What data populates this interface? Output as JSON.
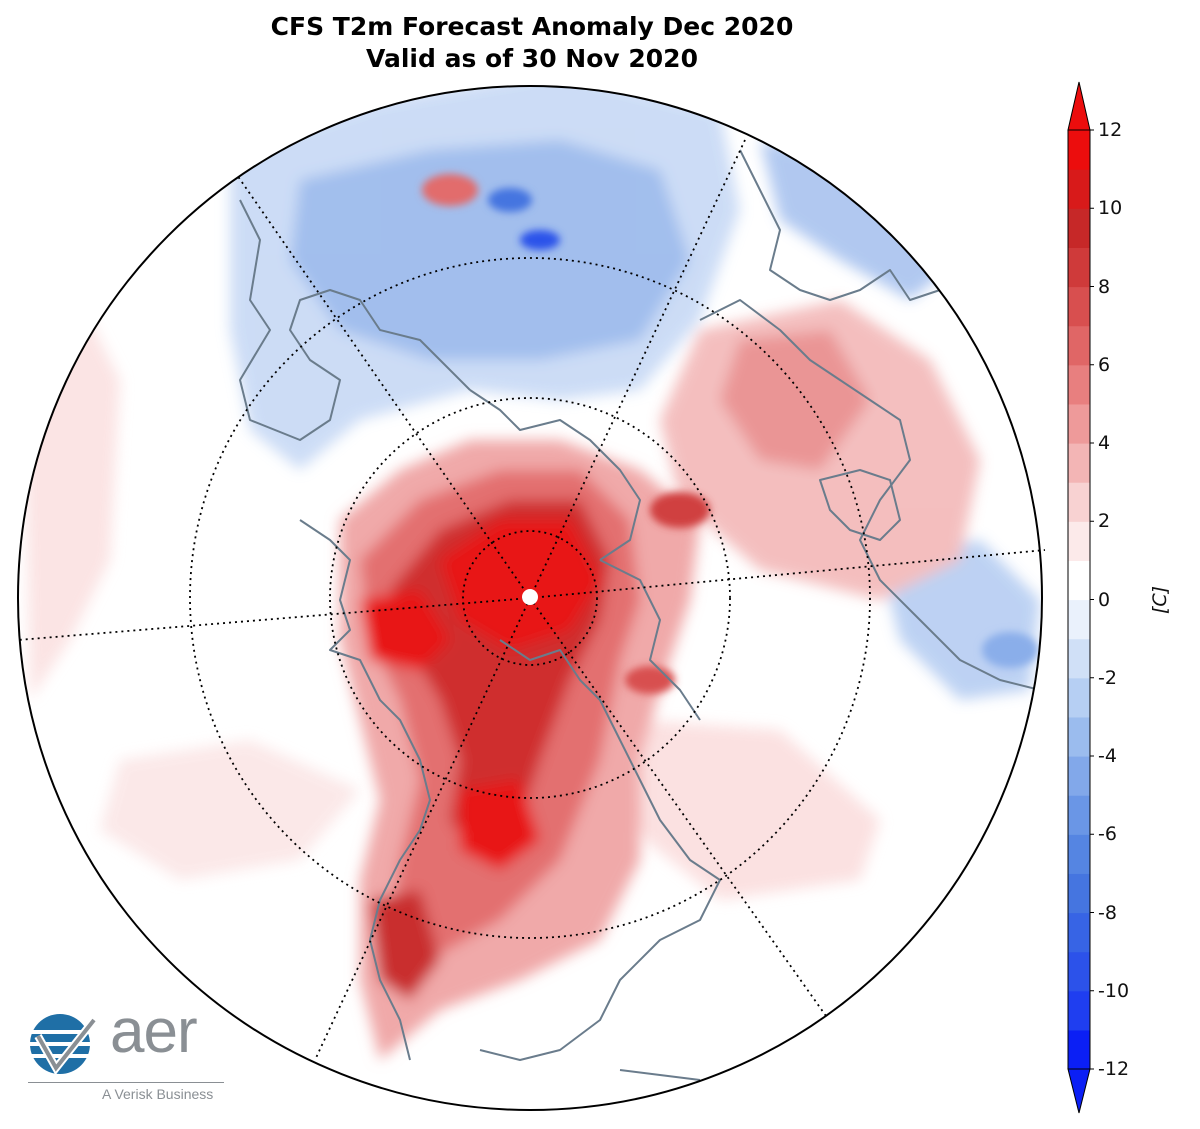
{
  "title_line1": "CFS T2m Forecast Anomaly Dec 2020",
  "title_line2": "Valid as of 30 Nov 2020",
  "colorbar": {
    "unit": "[C]",
    "min": -12,
    "max": 12,
    "ticks": [
      "12",
      "10",
      "8",
      "6",
      "4",
      "2",
      "0",
      "-2",
      "-4",
      "-6",
      "-8",
      "-10",
      "-12"
    ],
    "levels": [
      -12,
      -11,
      -10,
      -9,
      -8,
      -7,
      -6,
      -5,
      -4,
      -3,
      -2,
      -1,
      1,
      2,
      3,
      4,
      5,
      6,
      7,
      8,
      9,
      10,
      11,
      12
    ],
    "colors": [
      "#0b1ff5",
      "#1f3ef0",
      "#2c52ea",
      "#3764e5",
      "#4575e0",
      "#5585e2",
      "#6a96e6",
      "#82a8ea",
      "#9bbcee",
      "#b6cff3",
      "#d0e0f7",
      "#eaf1fc",
      "#ffffff",
      "#fceaea",
      "#f8d2d2",
      "#f3b5b5",
      "#ee9a9a",
      "#e87f7f",
      "#e06666",
      "#d84f4f",
      "#cf3a3a",
      "#c62828",
      "#d81a1a",
      "#ec0d0d"
    ]
  },
  "logo": {
    "word": "aer",
    "tagline": "A Verisk Business",
    "color_blue": "#1f6fa6",
    "color_gray": "#8a8f94"
  }
}
